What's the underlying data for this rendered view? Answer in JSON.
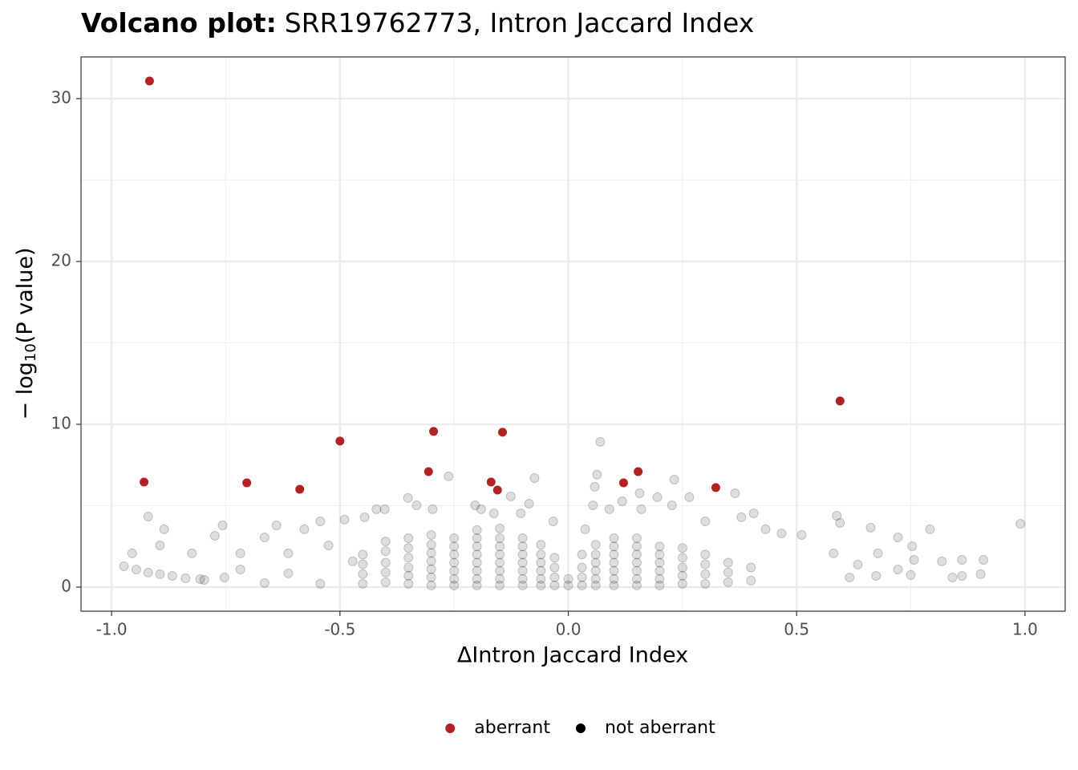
{
  "chart_data": {
    "type": "scatter",
    "title": "Volcano plot:",
    "subtitle": "SRR19762773, Intron Jaccard Index",
    "xlabel": "ΔIntron Jaccard Index",
    "ylabel": [
      "− log",
      "10",
      "(P value)"
    ],
    "xlim": [
      -1.067,
      1.088
    ],
    "ylim": [
      -1.48,
      32.56
    ],
    "xticks": [
      {
        "value": -1,
        "label": "-1.0"
      },
      -0.5,
      {
        "value": 0,
        "label": "0.0"
      },
      0.5,
      {
        "value": 1,
        "label": "1.0"
      }
    ],
    "yticks": [
      0,
      10,
      20,
      30
    ],
    "grid": true,
    "legend": "bottom",
    "series": [
      {
        "name": "aberrant",
        "color": "#b22222",
        "x": [
          -0.917,
          -0.929,
          -0.704,
          -0.588,
          -0.5,
          -0.306,
          -0.295,
          -0.169,
          -0.155,
          -0.144,
          0.121,
          0.153,
          0.323,
          0.595
        ],
        "y": [
          31.08,
          6.45,
          6.4,
          6.01,
          8.97,
          7.09,
          9.56,
          6.45,
          5.96,
          9.51,
          6.4,
          7.09,
          6.11,
          11.43
        ]
      },
      {
        "name": "not aberrant",
        "color": "#000000",
        "x": [
          0.07,
          -0.074,
          0.063,
          0.058,
          -0.126,
          -0.262,
          -0.351,
          0.365,
          0.232,
          0.588,
          0.595,
          0.99,
          -0.92,
          -0.885,
          0.792,
          0.662,
          0.722,
          0.862,
          0.909,
          0.903,
          0.841,
          0.862,
          0.674,
          0.75,
          0.757,
          0.818,
          0.722,
          0.678,
          0.753,
          0.634,
          0.616,
          0.581,
          0.511,
          0.467,
          0.432,
          0.379,
          0.406,
          0.3,
          0.265,
          0.227,
          0.195,
          0.156,
          0.16,
          0.118,
          0.09,
          0.054,
          0.037,
          -0.955,
          -0.894,
          -0.824,
          -0.757,
          -0.774,
          -0.718,
          -0.665,
          -0.639,
          -0.578,
          -0.543,
          -0.49,
          -0.446,
          -0.42,
          -0.402,
          -0.332,
          -0.297,
          -0.204,
          -0.191,
          -0.163,
          -0.104,
          -0.086,
          -0.033,
          -0.973,
          -0.946,
          -0.92,
          -0.894,
          -0.867,
          -0.838,
          -0.806,
          -0.797,
          -0.753,
          -0.665,
          -0.613,
          -0.543,
          -0.718,
          -0.613,
          -0.525,
          -0.472,
          -0.45,
          -0.45,
          -0.45,
          -0.45,
          -0.4,
          -0.4,
          -0.4,
          -0.4,
          -0.4,
          -0.35,
          -0.35,
          -0.35,
          -0.35,
          -0.35,
          -0.35,
          -0.3,
          -0.3,
          -0.3,
          -0.3,
          -0.3,
          -0.3,
          -0.3,
          -0.25,
          -0.25,
          -0.25,
          -0.25,
          -0.25,
          -0.25,
          -0.25,
          -0.2,
          -0.2,
          -0.2,
          -0.2,
          -0.2,
          -0.2,
          -0.2,
          -0.2,
          -0.15,
          -0.15,
          -0.15,
          -0.15,
          -0.15,
          -0.15,
          -0.15,
          -0.15,
          -0.1,
          -0.1,
          -0.1,
          -0.1,
          -0.1,
          -0.1,
          -0.1,
          -0.06,
          -0.06,
          -0.06,
          -0.06,
          -0.06,
          -0.06,
          -0.03,
          -0.03,
          -0.03,
          -0.03,
          0,
          0,
          0.03,
          0.03,
          0.03,
          0.03,
          0.06,
          0.06,
          0.06,
          0.06,
          0.06,
          0.06,
          0.1,
          0.1,
          0.1,
          0.1,
          0.1,
          0.1,
          0.1,
          0.15,
          0.15,
          0.15,
          0.15,
          0.15,
          0.15,
          0.15,
          0.2,
          0.2,
          0.2,
          0.2,
          0.2,
          0.2,
          0.25,
          0.25,
          0.25,
          0.25,
          0.25,
          0.3,
          0.3,
          0.3,
          0.3,
          0.35,
          0.35,
          0.35,
          0.4,
          0.4
        ],
        "y": [
          8.92,
          6.7,
          6.9,
          6.16,
          5.57,
          6.8,
          5.47,
          5.76,
          6.6,
          4.38,
          3.94,
          3.89,
          4.33,
          3.55,
          3.55,
          3.65,
          3.05,
          1.67,
          1.67,
          0.79,
          0.59,
          0.69,
          0.69,
          0.74,
          1.67,
          1.58,
          1.08,
          2.07,
          2.51,
          1.38,
          0.59,
          2.07,
          3.2,
          3.3,
          3.55,
          4.29,
          4.53,
          4.04,
          5.52,
          5.02,
          5.52,
          5.76,
          4.78,
          5.27,
          4.78,
          5.02,
          3.55,
          2.07,
          2.56,
          2.07,
          3.79,
          3.15,
          2.07,
          3.05,
          3.79,
          3.55,
          4.04,
          4.14,
          4.29,
          4.78,
          4.78,
          5.02,
          4.78,
          5.02,
          4.78,
          4.53,
          4.53,
          5.12,
          4.04,
          1.28,
          1.08,
          0.89,
          0.79,
          0.69,
          0.54,
          0.49,
          0.44,
          0.59,
          0.25,
          0.84,
          0.2,
          1.08,
          2.07,
          2.56,
          1.58,
          0.2,
          0.8,
          1.4,
          2.0,
          0.3,
          0.9,
          1.5,
          2.2,
          2.8,
          0.2,
          0.7,
          1.2,
          1.8,
          2.4,
          3.0,
          0.1,
          0.6,
          1.1,
          1.6,
          2.1,
          2.6,
          3.2,
          0.1,
          0.5,
          1.0,
          1.5,
          2.0,
          2.5,
          3.0,
          0.1,
          0.5,
          1.0,
          1.5,
          2.0,
          2.5,
          3.0,
          3.5,
          0.1,
          0.5,
          1.0,
          1.5,
          2.0,
          2.5,
          3.0,
          3.6,
          0.1,
          0.5,
          1.0,
          1.5,
          2.0,
          2.5,
          3.0,
          0.1,
          0.5,
          1.0,
          1.5,
          2.0,
          2.6,
          0.1,
          0.6,
          1.2,
          1.8,
          0.1,
          0.5,
          0.1,
          0.6,
          1.2,
          2.0,
          0.1,
          0.5,
          1.0,
          1.5,
          2.0,
          2.6,
          0.1,
          0.5,
          1.0,
          1.5,
          2.0,
          2.5,
          3.0,
          0.1,
          0.5,
          1.0,
          1.5,
          2.0,
          2.5,
          3.0,
          0.1,
          0.5,
          1.0,
          1.5,
          2.0,
          2.5,
          0.2,
          0.7,
          1.2,
          1.8,
          2.4,
          0.2,
          0.8,
          1.4,
          2.0,
          0.3,
          0.9,
          1.5,
          0.4,
          1.2
        ]
      }
    ]
  }
}
